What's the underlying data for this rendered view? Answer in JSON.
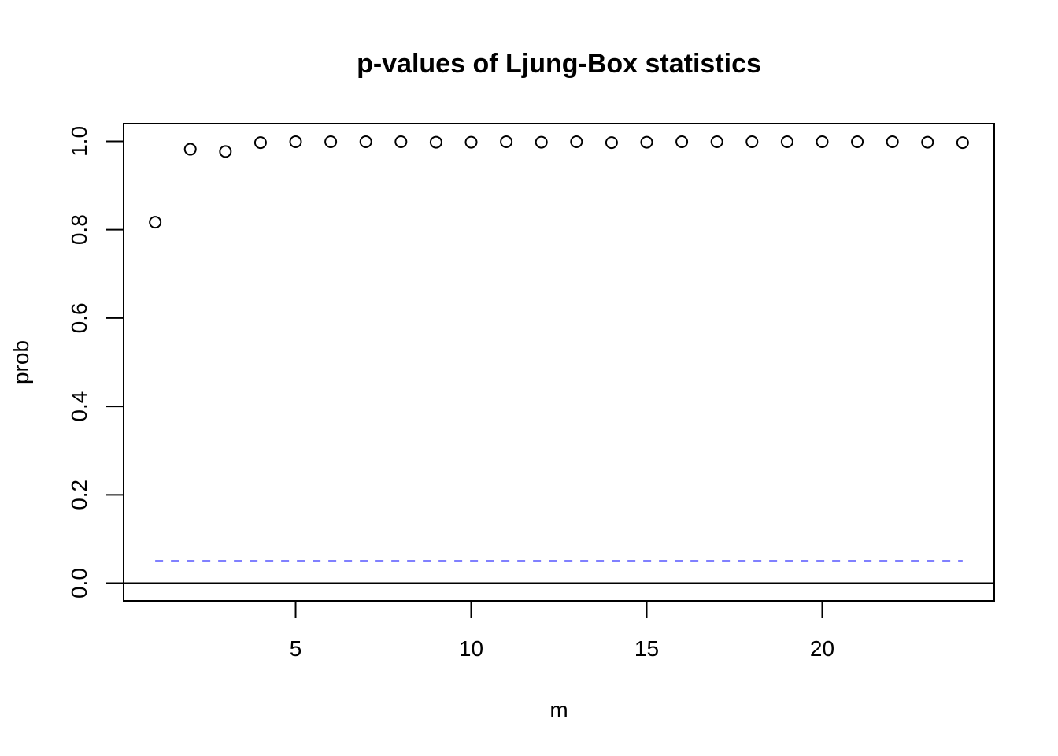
{
  "chart_data": {
    "type": "scatter",
    "title": "p-values of Ljung-Box statistics",
    "xlabel": "m",
    "ylabel": "prob",
    "xlim": [
      0.1,
      24.9
    ],
    "ylim": [
      -0.04,
      1.04
    ],
    "x_ticks": [
      5,
      10,
      15,
      20
    ],
    "y_ticks": [
      0.0,
      0.2,
      0.4,
      0.6,
      0.8,
      1.0
    ],
    "x_tick_labels": [
      "5",
      "10",
      "15",
      "20"
    ],
    "y_tick_labels": [
      "0.0",
      "0.2",
      "0.4",
      "0.6",
      "0.8",
      "1.0"
    ],
    "x": [
      1,
      2,
      3,
      4,
      5,
      6,
      7,
      8,
      9,
      10,
      11,
      12,
      13,
      14,
      15,
      16,
      17,
      18,
      19,
      20,
      21,
      22,
      23,
      24
    ],
    "y": [
      0.817,
      0.982,
      0.977,
      0.997,
      0.999,
      0.999,
      0.999,
      0.999,
      0.998,
      0.998,
      0.999,
      0.998,
      0.999,
      0.997,
      0.998,
      0.999,
      0.999,
      0.999,
      0.999,
      0.999,
      0.999,
      0.999,
      0.998,
      0.997
    ],
    "reference_lines": [
      {
        "y": 0.05,
        "x_from": 1,
        "x_to": 24,
        "style": "dashed",
        "color": "#0000ff"
      },
      {
        "y": 0.0,
        "style": "solid",
        "color": "#000000"
      }
    ],
    "point_marker": "open-circle",
    "grid": false,
    "legend": "none"
  }
}
